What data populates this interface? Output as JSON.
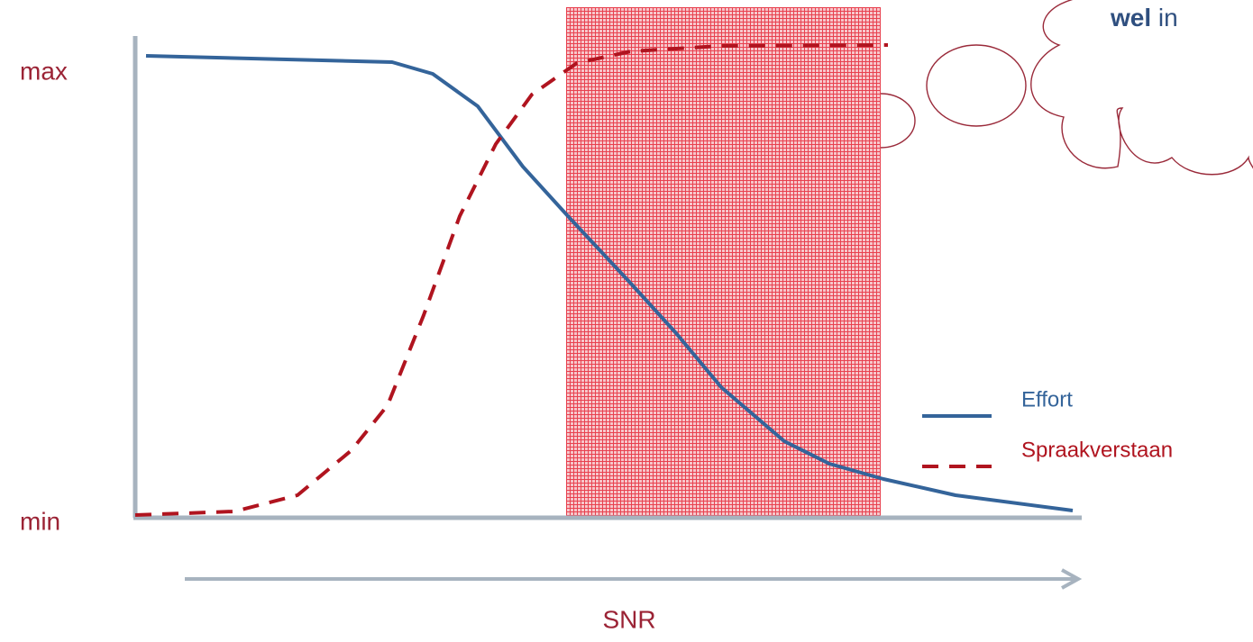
{
  "chart_data": {
    "type": "line",
    "x_label": "SNR",
    "xlim": [
      0,
      105
    ],
    "ylim": [
      0,
      107
    ],
    "yticks": [
      {
        "value": 0,
        "label": "min"
      },
      {
        "value": 100,
        "label": "max"
      }
    ],
    "legend": "right",
    "series": [
      {
        "name": "Effort",
        "color": "#34649a",
        "dash": false,
        "x": [
          1.2,
          28.5,
          33,
          38,
          43,
          48,
          55,
          60,
          65,
          72,
          77,
          83,
          91,
          104
        ],
        "values": [
          102.6,
          101.2,
          98.6,
          91.4,
          78,
          67,
          52,
          41,
          29,
          17,
          12,
          8.6,
          5,
          1.6
        ]
      },
      {
        "name": "Spraakverstaan",
        "color": "#b0141f",
        "dash": true,
        "x": [
          0,
          11,
          18,
          24,
          28,
          32,
          36,
          40,
          44,
          49,
          55,
          65,
          83.5
        ],
        "values": [
          0.6,
          1.4,
          5,
          15,
          25,
          45,
          67,
          83,
          94,
          101,
          103.6,
          104.8,
          105
        ]
      }
    ],
    "shaded_region": {
      "x": [
        47.8,
        82.7
      ],
      "color": "#e8414f"
    },
    "cloud_text": [
      "wel",
      "in"
    ]
  }
}
